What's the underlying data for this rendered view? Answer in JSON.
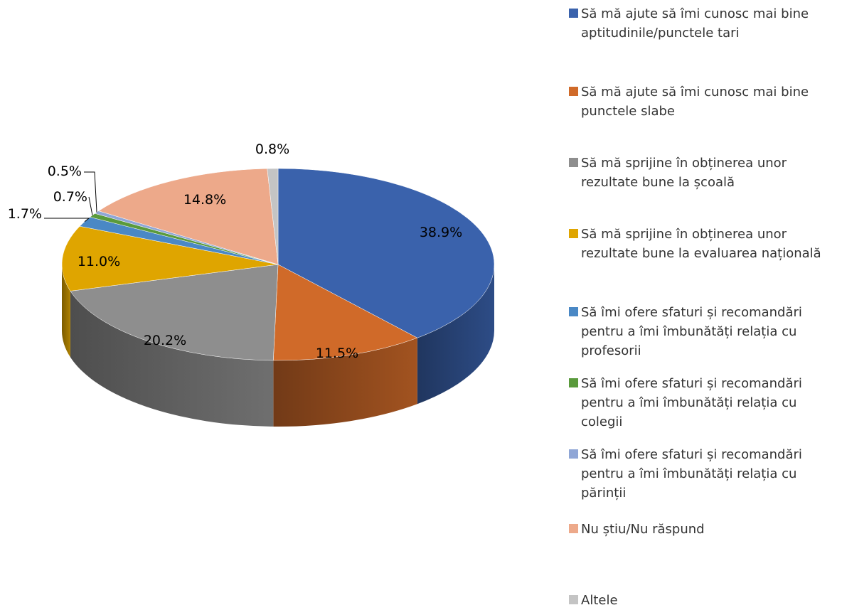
{
  "chart_data": {
    "type": "pie",
    "three_d": true,
    "start_angle": "12 o'clock, clockwise",
    "legend_position": "right",
    "categories": [
      "Să mă ajute să îmi cunosc mai bine aptitudinile/punctele tari",
      "Să mă ajute să îmi cunosc mai bine punctele slabe",
      "Să mă sprijine în obținerea unor rezultate bune la școală",
      "Să mă sprijine în obținerea unor rezultate bune la evaluarea națională",
      "Să îmi ofere sfaturi și recomandări pentru a îmi îmbunătăți relația cu profesorii",
      "Să îmi ofere sfaturi și recomandări pentru a îmi îmbunătăți relația cu colegii",
      "Să îmi ofere sfaturi și recomandări pentru a îmi îmbunătăți relația cu părinții",
      "Nu știu/Nu răspund",
      "Altele"
    ],
    "values": [
      38.9,
      11.5,
      20.2,
      11.0,
      1.7,
      0.7,
      0.5,
      14.8,
      0.8
    ],
    "data_labels": [
      "38.9%",
      "11.5%",
      "20.2%",
      "11.0%",
      "1.7%",
      "0.7%",
      "0.5%",
      "14.8%",
      "0.8%"
    ],
    "colors": [
      "#3A62AC",
      "#D06A29",
      "#8E8E8E",
      "#DFA500",
      "#4A88C5",
      "#5A9A3C",
      "#8FA6D6",
      "#EDA98A",
      "#C4C4C4"
    ]
  },
  "legend": {
    "items": [
      {
        "lines": [
          "Să mă ajute să îmi cunosc mai bine",
          "aptitudinile/punctele tari"
        ]
      },
      {
        "lines": [
          "Să mă ajute să îmi cunosc mai bine",
          "punctele slabe"
        ]
      },
      {
        "lines": [
          "Să mă sprijine în obținerea unor",
          "rezultate bune la școală"
        ]
      },
      {
        "lines": [
          "Să mă sprijine în obținerea unor",
          "rezultate bune la evaluarea națională"
        ]
      },
      {
        "lines": [
          "Să îmi ofere sfaturi și recomandări",
          "pentru a îmi îmbunătăți relația cu",
          "profesorii"
        ]
      },
      {
        "lines": [
          "Să îmi ofere sfaturi și recomandări",
          "pentru a îmi îmbunătăți relația cu",
          "colegii"
        ]
      },
      {
        "lines": [
          "Să îmi ofere sfaturi și recomandări",
          "pentru a îmi îmbunătăți relația cu",
          "părinții"
        ]
      },
      {
        "lines": [
          "Nu știu/Nu răspund"
        ]
      },
      {
        "lines": [
          "Altele"
        ]
      }
    ]
  }
}
